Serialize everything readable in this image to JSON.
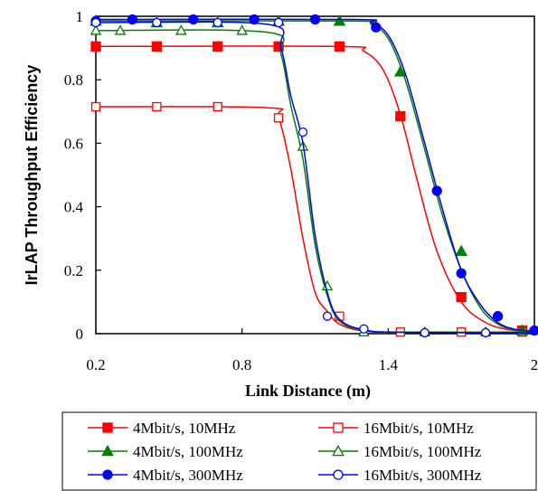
{
  "chart_data": {
    "type": "line",
    "title": "",
    "xlabel": "Link Distance (m)",
    "ylabel": "IrLAP Throughput Efficiency",
    "xlim": [
      0.2,
      2.0
    ],
    "ylim": [
      0,
      1
    ],
    "xticks": [
      0.2,
      0.8,
      1.4,
      2.0
    ],
    "xtick_labels": [
      "0.2",
      "0.8",
      "1.4",
      "2"
    ],
    "yticks": [
      0,
      0.2,
      0.4,
      0.6,
      0.8,
      1.0
    ],
    "ytick_labels": [
      "0",
      "0.2",
      "0.4",
      "0.6",
      "0.8",
      "1"
    ],
    "grid": false,
    "legend_position": "bottom",
    "series": [
      {
        "name": "4Mbit/s, 10MHz",
        "color": "#ff0000",
        "marker": "square",
        "filled": true,
        "x": [
          0.2,
          0.45,
          0.7,
          0.95,
          1.2,
          1.45,
          1.7,
          1.95
        ],
        "y": [
          0.905,
          0.905,
          0.905,
          0.905,
          0.905,
          0.685,
          0.115,
          0.01
        ],
        "curve_x": [
          0.2,
          1.2,
          1.3,
          1.38,
          1.45,
          1.52,
          1.6,
          1.7,
          1.8,
          1.9,
          2.0
        ],
        "curve_y": [
          0.905,
          0.905,
          0.89,
          0.83,
          0.69,
          0.48,
          0.26,
          0.1,
          0.035,
          0.012,
          0.008
        ]
      },
      {
        "name": "16Mbit/s, 10MHz",
        "color": "#ff0000",
        "marker": "square",
        "filled": false,
        "x": [
          0.2,
          0.45,
          0.7,
          0.95,
          1.2,
          1.45,
          1.7,
          1.95
        ],
        "y": [
          0.715,
          0.715,
          0.715,
          0.68,
          0.055,
          0.005,
          0.005,
          0.005
        ],
        "curve_x": [
          0.2,
          0.9,
          0.95,
          1.0,
          1.05,
          1.1,
          1.15,
          1.2,
          1.3,
          1.45,
          2.0
        ],
        "curve_y": [
          0.715,
          0.712,
          0.68,
          0.52,
          0.3,
          0.13,
          0.07,
          0.03,
          0.008,
          0.005,
          0.005
        ]
      },
      {
        "name": "4Mbit/s, 100MHz",
        "color": "#008000",
        "marker": "triangle",
        "filled": true,
        "x": [
          0.2,
          0.45,
          0.7,
          0.95,
          1.2,
          1.45,
          1.7,
          1.95
        ],
        "y": [
          0.985,
          0.98,
          0.98,
          0.985,
          0.985,
          0.825,
          0.26,
          0.01
        ],
        "curve_x": [
          0.2,
          1.25,
          1.33,
          1.4,
          1.47,
          1.55,
          1.62,
          1.7,
          1.78,
          1.85,
          1.92,
          2.0
        ],
        "curve_y": [
          0.985,
          0.985,
          0.975,
          0.93,
          0.8,
          0.58,
          0.38,
          0.2,
          0.08,
          0.03,
          0.012,
          0.008
        ]
      },
      {
        "name": "16Mbit/s, 100MHz",
        "color": "#008000",
        "marker": "triangle",
        "filled": false,
        "x": [
          0.2,
          0.3,
          0.55,
          0.8,
          1.05,
          1.15,
          1.3,
          1.55,
          1.8
        ],
        "y": [
          0.955,
          0.955,
          0.955,
          0.955,
          0.59,
          0.15,
          0.005,
          0.005,
          0.005
        ],
        "curve_x": [
          0.2,
          0.9,
          0.96,
          1.0,
          1.05,
          1.1,
          1.15,
          1.2,
          1.3,
          1.45,
          2.0
        ],
        "curve_y": [
          0.955,
          0.95,
          0.88,
          0.72,
          0.55,
          0.28,
          0.12,
          0.04,
          0.01,
          0.005,
          0.005
        ]
      },
      {
        "name": "4Mbit/s, 300MHz",
        "color": "#0000ff",
        "marker": "circle",
        "filled": true,
        "x": [
          0.2,
          0.35,
          0.6,
          0.85,
          1.1,
          1.35,
          1.6,
          1.7,
          1.85,
          2.0
        ],
        "y": [
          0.985,
          0.99,
          0.99,
          0.99,
          0.99,
          0.965,
          0.45,
          0.19,
          0.055,
          0.01
        ],
        "curve_x": [
          0.2,
          1.25,
          1.33,
          1.4,
          1.47,
          1.55,
          1.62,
          1.7,
          1.78,
          1.85,
          1.92,
          2.0
        ],
        "curve_y": [
          0.99,
          0.99,
          0.98,
          0.94,
          0.82,
          0.6,
          0.4,
          0.2,
          0.09,
          0.035,
          0.014,
          0.008
        ]
      },
      {
        "name": "16Mbit/s, 300MHz",
        "color": "#0000ff",
        "marker": "circle",
        "filled": false,
        "x": [
          0.2,
          0.45,
          0.7,
          0.95,
          1.05,
          1.15,
          1.3,
          1.55,
          1.8
        ],
        "y": [
          0.98,
          0.98,
          0.98,
          0.98,
          0.635,
          0.055,
          0.015,
          0.003,
          0.003
        ],
        "curve_x": [
          0.2,
          0.9,
          0.96,
          1.0,
          1.05,
          1.1,
          1.15,
          1.2,
          1.3,
          1.45,
          2.0
        ],
        "curve_y": [
          0.98,
          0.975,
          0.9,
          0.75,
          0.6,
          0.31,
          0.13,
          0.045,
          0.012,
          0.004,
          0.003
        ]
      }
    ]
  }
}
